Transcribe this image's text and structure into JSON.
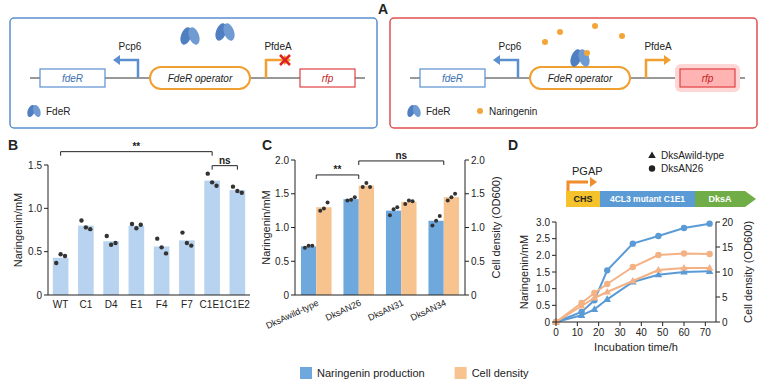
{
  "panel_labels": [
    "A",
    "B",
    "C",
    "D"
  ],
  "diagram": {
    "gene": "fdeR",
    "promoter_1": "Pcp6",
    "operator": "FdeR operator",
    "promoter_2": "PfdeA",
    "reporter": "rfp",
    "protein": "FdeR",
    "states": [
      {
        "ligand": null
      },
      {
        "ligand": "Naringenin"
      }
    ]
  },
  "construct": {
    "promoter": "PGAP",
    "genes": [
      "CHS",
      "4CL3 mutant C1E1",
      "DksA"
    ]
  },
  "chart_data": [
    {
      "type": "bar",
      "categories": [
        "WT",
        "C1",
        "D4",
        "E1",
        "F4",
        "F7",
        "C1E1",
        "C1E2"
      ],
      "values": [
        0.43,
        0.8,
        0.62,
        0.8,
        0.56,
        0.63,
        1.32,
        1.21
      ],
      "replicates": [
        [
          0.37,
          0.47,
          0.45
        ],
        [
          0.86,
          0.78,
          0.76
        ],
        [
          0.68,
          0.58,
          0.6
        ],
        [
          0.82,
          0.77,
          0.81
        ],
        [
          0.65,
          0.55,
          0.48
        ],
        [
          0.72,
          0.6,
          0.57
        ],
        [
          1.4,
          1.3,
          1.26
        ],
        [
          1.25,
          1.2,
          1.18
        ]
      ],
      "color": "#b8d3ef",
      "ylim": [
        0,
        1.5
      ],
      "yticks": [
        0,
        0.5,
        {
          "value": 1,
          "label": "1.0"
        },
        1.5
      ],
      "y_label": "Naringenin/mM",
      "annotations": [
        {
          "text": "**",
          "between": [
            "WT",
            "C1E1"
          ]
        },
        {
          "text": "ns",
          "between": [
            "C1E1",
            "C1E2"
          ]
        }
      ],
      "grid": false
    },
    {
      "type": "bar",
      "categories": [
        "DksAwild-type",
        "DksAN26",
        "DksAN31",
        "DksAN34"
      ],
      "series": [
        {
          "name": "Naringenin production",
          "color": "#6fa8dc",
          "values": [
            0.72,
            1.42,
            1.25,
            1.1
          ],
          "replicates": [
            [
              0.7,
              0.73,
              0.73
            ],
            [
              1.4,
              1.41,
              1.45
            ],
            [
              1.18,
              1.27,
              1.3
            ],
            [
              1.03,
              1.1,
              1.17
            ]
          ]
        },
        {
          "name": "Cell density",
          "color": "#f7c38e",
          "axis": "y2",
          "values": [
            1.3,
            1.62,
            1.38,
            1.45
          ],
          "replicates": [
            [
              1.25,
              1.28,
              1.37
            ],
            [
              1.6,
              1.66,
              1.6
            ],
            [
              1.35,
              1.4,
              1.39
            ],
            [
              1.4,
              1.45,
              1.5
            ]
          ]
        }
      ],
      "ylim": [
        0,
        2
      ],
      "yticks": [
        0,
        0.5,
        {
          "value": 1,
          "label": "1.0"
        },
        1.5,
        {
          "value": 2,
          "label": "2.0"
        }
      ],
      "y2lim": [
        0,
        2
      ],
      "y2ticks": [
        0,
        0.5,
        {
          "value": 1,
          "label": "1.0"
        },
        1.5,
        {
          "value": 2,
          "label": "2.0"
        }
      ],
      "y_label": "Naringenin/mM",
      "y2_label": "Cell density (OD600)",
      "annotations": [
        {
          "text": "**",
          "between": [
            "DksAwild-type",
            "DksAN26"
          ]
        },
        {
          "text": "ns",
          "between": [
            "DksAN26",
            "DksAN34"
          ]
        }
      ],
      "legend": "bottom",
      "grid": false
    },
    {
      "type": "line",
      "x": [
        0,
        12,
        18,
        24,
        36,
        48,
        60,
        72
      ],
      "series": [
        {
          "name": "DksAwild-type",
          "color": "#5b9bd5",
          "marker": "triangle",
          "values": [
            0,
            0.2,
            0.38,
            0.68,
            1.2,
            1.42,
            1.5,
            1.52
          ]
        },
        {
          "name": "DksAN26",
          "color": "#5b9bd5",
          "marker": "circle",
          "values": [
            0,
            0.3,
            0.65,
            1.55,
            2.35,
            2.58,
            2.82,
            2.95
          ]
        },
        {
          "name": "DksAwild-type",
          "color": "#f4b183",
          "marker": "triangle",
          "axis": "y2",
          "values": [
            0,
            3.2,
            4.8,
            6,
            8.2,
            10.4,
            10.8,
            10.8
          ]
        },
        {
          "name": "DksAN26",
          "color": "#f4b183",
          "marker": "circle",
          "axis": "y2",
          "values": [
            0,
            3.8,
            5.8,
            7.6,
            11,
            13.4,
            13.7,
            13.6
          ]
        }
      ],
      "xlim": [
        0,
        75
      ],
      "xticks": [
        0,
        10,
        20,
        30,
        40,
        50,
        60,
        70
      ],
      "ylim": [
        0,
        3
      ],
      "yticks": [
        0,
        0.5,
        {
          "value": 1,
          "label": "1.0"
        },
        1.5,
        {
          "value": 2,
          "label": "2.0"
        },
        2.5,
        {
          "value": 3,
          "label": "3.0"
        }
      ],
      "y2lim": [
        0,
        20
      ],
      "y2ticks": [
        0,
        5,
        10,
        15,
        20
      ],
      "x_label": "Incubation time/h",
      "y_label": "Naringenin/mM",
      "y2_label": "Cell density (OD600)",
      "legend": "top right",
      "grid": false
    }
  ]
}
